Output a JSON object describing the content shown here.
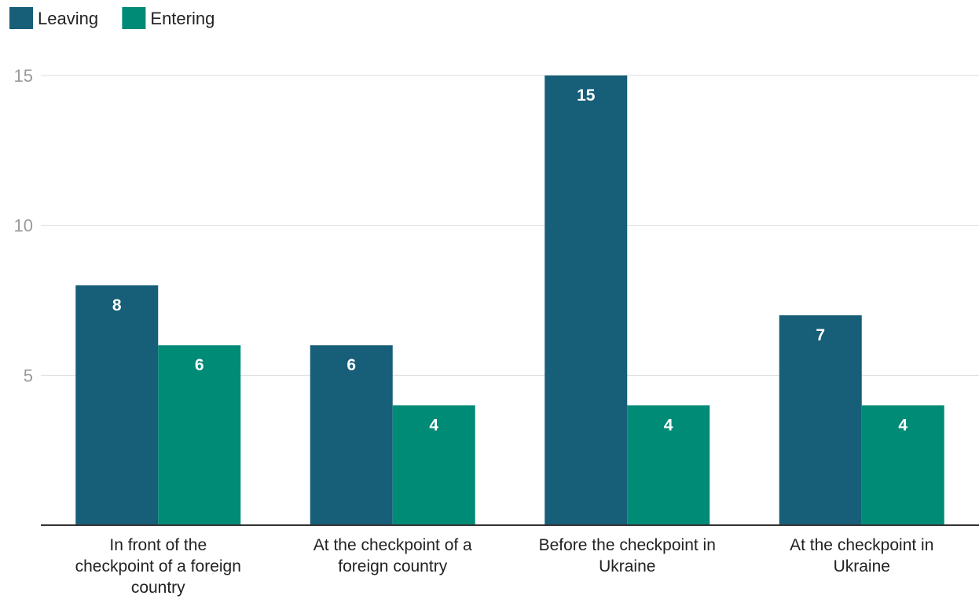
{
  "chart_data": {
    "type": "bar",
    "title": "",
    "xlabel": "",
    "ylabel": "",
    "categories": [
      [
        "In front of the",
        "checkpoint of a foreign",
        "country"
      ],
      [
        "At the checkpoint of a",
        "foreign country"
      ],
      [
        "Before the checkpoint in",
        "Ukraine"
      ],
      [
        "At the checkpoint in",
        "Ukraine"
      ]
    ],
    "series": [
      {
        "name": "Leaving",
        "color": "#175e78",
        "values": [
          8,
          6,
          15,
          7
        ]
      },
      {
        "name": "Entering",
        "color": "#008b77",
        "values": [
          6,
          4,
          4,
          4
        ]
      }
    ],
    "ylim": [
      0,
      15
    ],
    "yticks": [
      5,
      10,
      15
    ],
    "grid": true,
    "legend_position": "top-left",
    "data_labels": true
  }
}
